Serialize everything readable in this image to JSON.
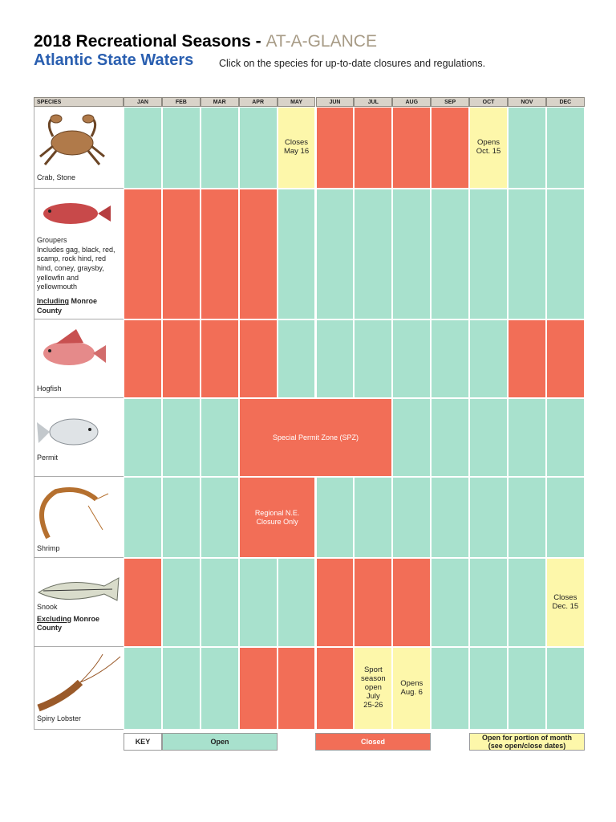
{
  "header": {
    "title": "2018 Recreational Seasons - ",
    "title_accent": "AT-A-GLANCE",
    "subtitle": "Atlantic State Waters",
    "instruction": "Click on the species for up-to-date closures and regulations."
  },
  "table": {
    "species_header": "SPECIES",
    "months": [
      "JAN",
      "FEB",
      "MAR",
      "APR",
      "MAY",
      "JUN",
      "JUL",
      "AUG",
      "SEP",
      "OCT",
      "NOV",
      "DEC"
    ],
    "colors": {
      "open": "#a8e1cd",
      "closed": "#f26e57",
      "partial": "#fdf7aa"
    },
    "rows": [
      {
        "name": "Crab, Stone",
        "cells": [
          {
            "state": "open"
          },
          {
            "state": "open"
          },
          {
            "state": "open"
          },
          {
            "state": "open"
          },
          {
            "state": "partial",
            "label": "Closes\nMay 16"
          },
          {
            "state": "closed"
          },
          {
            "state": "closed"
          },
          {
            "state": "closed"
          },
          {
            "state": "closed"
          },
          {
            "state": "partial",
            "label": "Opens\nOct. 15"
          },
          {
            "state": "open"
          },
          {
            "state": "open"
          }
        ]
      },
      {
        "name": "Groupers",
        "details": "Includes gag, black, red, scamp, rock hind, red hind, coney, graysby, yellowfin and yellowmouth",
        "qualifier": {
          "underlined": "Including",
          "text": " Monroe County"
        },
        "cells": [
          {
            "state": "closed"
          },
          {
            "state": "closed"
          },
          {
            "state": "closed"
          },
          {
            "state": "closed"
          },
          {
            "state": "open"
          },
          {
            "state": "open"
          },
          {
            "state": "open"
          },
          {
            "state": "open"
          },
          {
            "state": "open"
          },
          {
            "state": "open"
          },
          {
            "state": "open"
          },
          {
            "state": "open"
          }
        ]
      },
      {
        "name": "Hogfish",
        "cells": [
          {
            "state": "closed"
          },
          {
            "state": "closed"
          },
          {
            "state": "closed"
          },
          {
            "state": "closed"
          },
          {
            "state": "open"
          },
          {
            "state": "open"
          },
          {
            "state": "open"
          },
          {
            "state": "open"
          },
          {
            "state": "open"
          },
          {
            "state": "open"
          },
          {
            "state": "closed"
          },
          {
            "state": "closed"
          }
        ]
      },
      {
        "name": "Permit",
        "cells": [
          {
            "state": "open"
          },
          {
            "state": "open"
          },
          {
            "state": "open"
          },
          {
            "state": "closed",
            "span": 4,
            "label": "Special Permit Zone (SPZ)"
          },
          {
            "state": "open"
          },
          {
            "state": "open"
          },
          {
            "state": "open"
          },
          {
            "state": "open"
          },
          {
            "state": "open"
          }
        ]
      },
      {
        "name": "Shrimp",
        "cells": [
          {
            "state": "open"
          },
          {
            "state": "open"
          },
          {
            "state": "open"
          },
          {
            "state": "closed",
            "span": 2,
            "label": "Regional N.E.\nClosure Only"
          },
          {
            "state": "open"
          },
          {
            "state": "open"
          },
          {
            "state": "open"
          },
          {
            "state": "open"
          },
          {
            "state": "open"
          },
          {
            "state": "open"
          },
          {
            "state": "open"
          }
        ]
      },
      {
        "name": "Snook",
        "qualifier": {
          "underlined": "Excluding",
          "text": " Monroe County"
        },
        "cells": [
          {
            "state": "closed"
          },
          {
            "state": "open"
          },
          {
            "state": "open"
          },
          {
            "state": "open"
          },
          {
            "state": "open"
          },
          {
            "state": "closed"
          },
          {
            "state": "closed"
          },
          {
            "state": "closed"
          },
          {
            "state": "open"
          },
          {
            "state": "open"
          },
          {
            "state": "open"
          },
          {
            "state": "partial",
            "label": "Closes\nDec. 15"
          }
        ]
      },
      {
        "name": "Spiny Lobster",
        "cells": [
          {
            "state": "open"
          },
          {
            "state": "open"
          },
          {
            "state": "open"
          },
          {
            "state": "closed"
          },
          {
            "state": "closed"
          },
          {
            "state": "closed"
          },
          {
            "state": "partial",
            "label": "Sport\nseason\nopen\nJuly\n25-26"
          },
          {
            "state": "partial",
            "label": "Opens\nAug. 6"
          },
          {
            "state": "open"
          },
          {
            "state": "open"
          },
          {
            "state": "open"
          },
          {
            "state": "open"
          }
        ]
      }
    ]
  },
  "key": {
    "label": "KEY",
    "items": [
      {
        "state": "open",
        "label": "Open"
      },
      {
        "state": "closed",
        "label": "Closed"
      },
      {
        "state": "partial",
        "label": "Open for portion of month\n(see open/close dates)"
      }
    ]
  }
}
